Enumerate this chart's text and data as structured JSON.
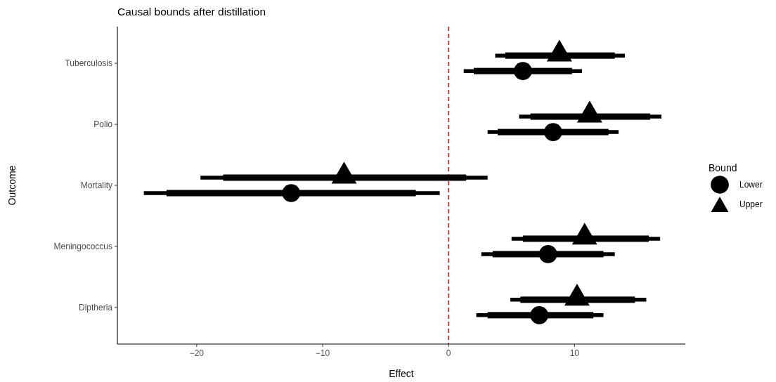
{
  "chart_data": {
    "type": "scatter",
    "title": "Causal bounds after distillation",
    "xlabel": "Effect",
    "ylabel": "Outcome",
    "legend_title": "Bound",
    "orientation": "horizontal",
    "categories": [
      "Tuberculosis",
      "Polio",
      "Mortality",
      "Meningococcus",
      "Diptheria"
    ],
    "xlim": [
      -26.3,
      18.8
    ],
    "xticks": [
      {
        "value": -20,
        "label": "−20"
      },
      {
        "value": -10,
        "label": "−10"
      },
      0,
      10
    ],
    "series": [
      {
        "type": "bar",
        "color": "#000000",
        "base": [
          4.5,
          6.5,
          -17.9,
          5.9,
          5.7
        ],
        "values": [
          8.7,
          9.5,
          19.3,
          10.0,
          9.1
        ]
      },
      {
        "type": "bar",
        "color": "#000000",
        "base": [
          2.0,
          3.9,
          -22.4,
          3.5,
          3.1
        ],
        "values": [
          7.8,
          8.8,
          19.8,
          8.8,
          8.4
        ]
      },
      {
        "name": "Upper",
        "marker": "triangle",
        "color": "#000000",
        "values": [
          8.8,
          11.2,
          -8.3,
          10.8,
          10.2
        ],
        "errors": [
          [
            3.7,
            14.0
          ],
          [
            5.6,
            16.9
          ],
          [
            -19.7,
            3.1
          ],
          [
            5.0,
            16.8
          ],
          [
            4.9,
            15.7
          ]
        ]
      },
      {
        "name": "Lower",
        "marker": "circle",
        "color": "#000000",
        "values": [
          5.9,
          8.3,
          -12.5,
          7.9,
          7.2
        ],
        "errors": [
          [
            1.2,
            10.6
          ],
          [
            3.1,
            13.5
          ],
          [
            -24.2,
            -0.7
          ],
          [
            2.6,
            13.2
          ],
          [
            2.2,
            12.3
          ]
        ]
      }
    ],
    "ref_lines": [
      {
        "axis": "x",
        "value": 0,
        "color": "#ff0000",
        "line_style": "dashed"
      }
    ],
    "grid": false,
    "legend": "right"
  }
}
